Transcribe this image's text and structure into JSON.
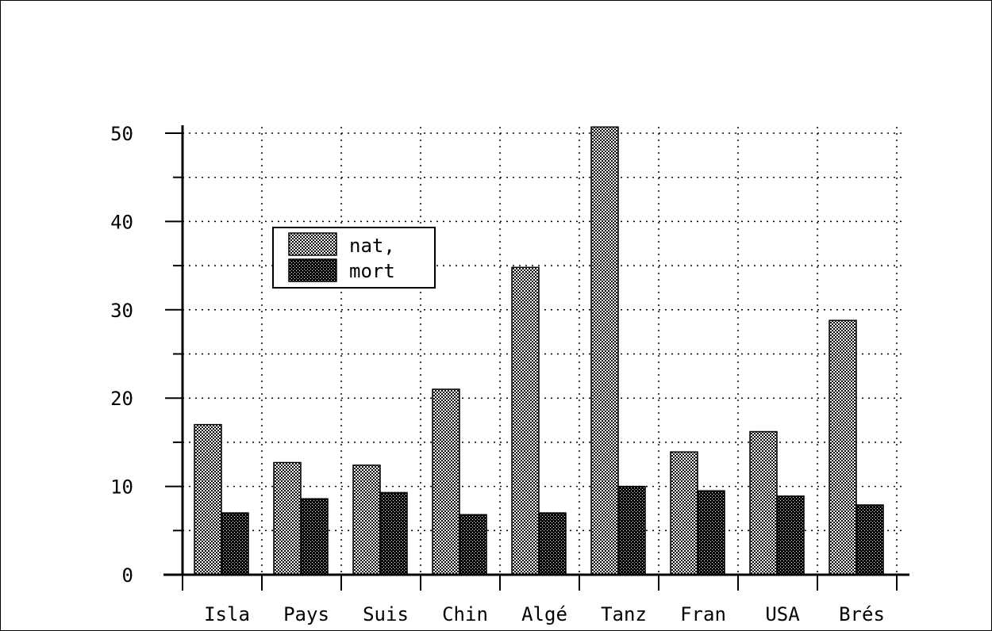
{
  "chart_data": {
    "type": "bar",
    "title": "",
    "xlabel": "",
    "ylabel": "",
    "categories": [
      "Isla",
      "Pays",
      "Suis",
      "Chin",
      "Algé",
      "Tanz",
      "Fran",
      "USA",
      "Brés"
    ],
    "series": [
      {
        "name": "nat,",
        "values": [
          17.0,
          12.7,
          12.4,
          21.0,
          34.8,
          50.7,
          13.9,
          16.2,
          28.8
        ],
        "pattern": "fine-checker",
        "color": "#888888"
      },
      {
        "name": "mort",
        "values": [
          7.0,
          8.6,
          9.3,
          6.8,
          7.0,
          10.0,
          9.5,
          8.9,
          7.9
        ],
        "pattern": "dotted-black",
        "color": "#111111"
      }
    ],
    "ylim": [
      0,
      50
    ],
    "yticks": [
      0,
      10,
      20,
      30,
      40,
      50
    ],
    "grid": true,
    "grid_style": "dotted",
    "legend_position": "upper-left"
  }
}
